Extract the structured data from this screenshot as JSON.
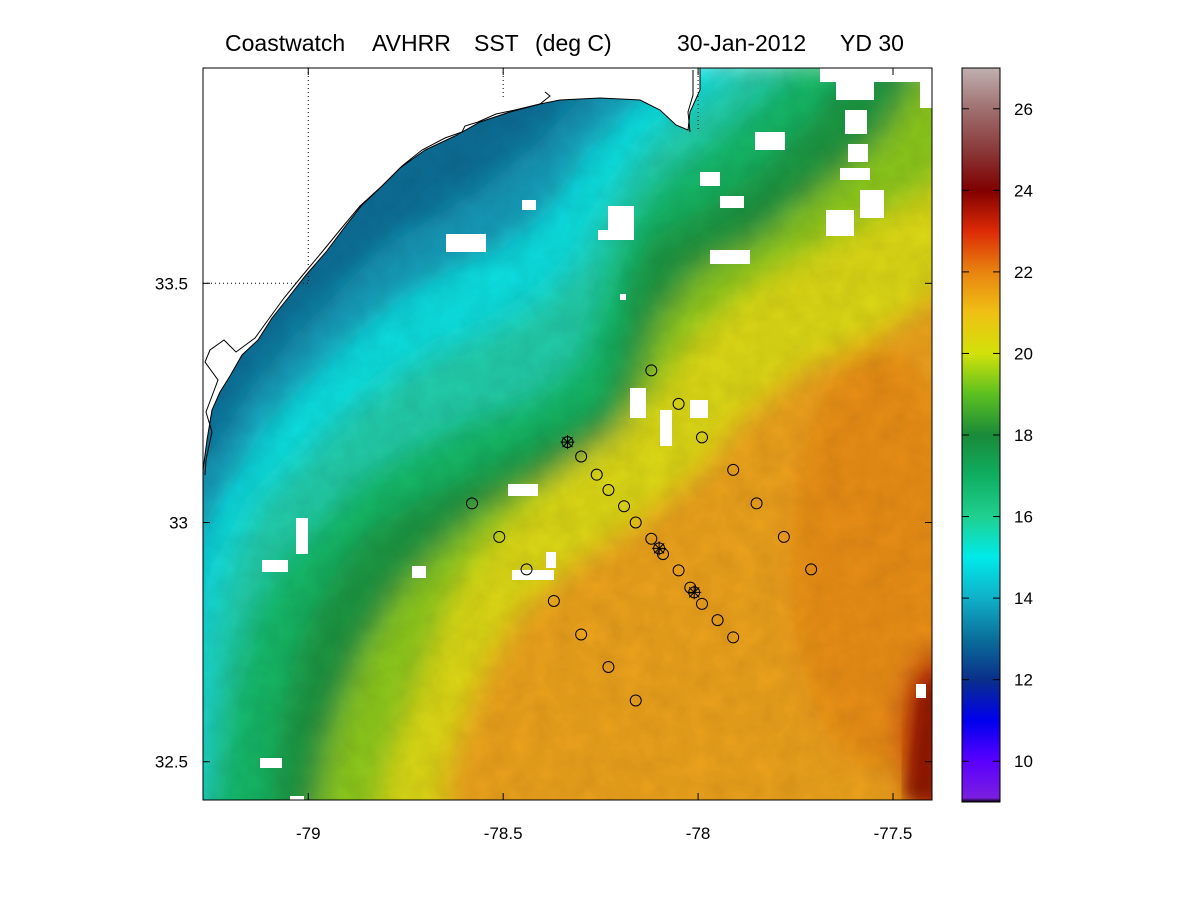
{
  "title": {
    "source": "Coastwatch",
    "sensor": "AVHRR",
    "variable": "SST",
    "units": "(deg C)",
    "date": "30-Jan-2012",
    "yearday": "YD 30"
  },
  "map": {
    "lon_range": [
      -79.27,
      -77.4
    ],
    "lat_range": [
      32.42,
      33.95
    ],
    "x_ticks": [
      {
        "value": -79,
        "label": "-79"
      },
      {
        "value": -78.5,
        "label": "-78.5"
      },
      {
        "value": -78,
        "label": "-78"
      },
      {
        "value": -77.5,
        "label": "-77.5"
      }
    ],
    "y_ticks": [
      {
        "value": 32.5,
        "label": "32.5"
      },
      {
        "value": 33,
        "label": "33"
      },
      {
        "value": 33.5,
        "label": "33.5"
      }
    ],
    "grid_lines": {
      "lon": [
        -79,
        -78.5,
        -78
      ],
      "lat": [
        33.5
      ],
      "style": "dotted"
    },
    "colors": {
      "land": "#ffffff",
      "coastline": "#000000"
    }
  },
  "colorbar": {
    "range": [
      9,
      27
    ],
    "ticks": [
      {
        "value": 10,
        "label": "10"
      },
      {
        "value": 12,
        "label": "12"
      },
      {
        "value": 14,
        "label": "14"
      },
      {
        "value": 16,
        "label": "16"
      },
      {
        "value": 18,
        "label": "18"
      },
      {
        "value": 20,
        "label": "20"
      },
      {
        "value": 22,
        "label": "22"
      },
      {
        "value": 24,
        "label": "24"
      },
      {
        "value": 26,
        "label": "26"
      }
    ],
    "stops": [
      {
        "value": 9,
        "color": "#000000"
      },
      {
        "value": 9.1,
        "color": "#7a1ee0"
      },
      {
        "value": 10,
        "color": "#5a00ff"
      },
      {
        "value": 11,
        "color": "#0000ee"
      },
      {
        "value": 12,
        "color": "#0a2f8a"
      },
      {
        "value": 13,
        "color": "#0a6f9a"
      },
      {
        "value": 14,
        "color": "#10b0c8"
      },
      {
        "value": 15,
        "color": "#00eaea"
      },
      {
        "value": 16,
        "color": "#20d090"
      },
      {
        "value": 17,
        "color": "#0fae60"
      },
      {
        "value": 18,
        "color": "#1a8a3a"
      },
      {
        "value": 19,
        "color": "#5cc020"
      },
      {
        "value": 20,
        "color": "#d2e10a"
      },
      {
        "value": 21,
        "color": "#f0c014"
      },
      {
        "value": 22,
        "color": "#e88410"
      },
      {
        "value": 23,
        "color": "#dd2a05"
      },
      {
        "value": 24,
        "color": "#800000"
      },
      {
        "value": 25,
        "color": "#8a3a3a"
      },
      {
        "value": 26,
        "color": "#a07070"
      },
      {
        "value": 27,
        "color": "#c0b0b0"
      }
    ]
  },
  "stations": [
    {
      "lon": -78.335,
      "lat": 33.168,
      "marker": "asterisk"
    },
    {
      "lon": -78.3,
      "lat": 33.138,
      "marker": "circle"
    },
    {
      "lon": -78.26,
      "lat": 33.1,
      "marker": "circle"
    },
    {
      "lon": -78.23,
      "lat": 33.068,
      "marker": "circle"
    },
    {
      "lon": -78.19,
      "lat": 33.034,
      "marker": "circle"
    },
    {
      "lon": -78.16,
      "lat": 33.0,
      "marker": "circle"
    },
    {
      "lon": -78.12,
      "lat": 32.966,
      "marker": "circle"
    },
    {
      "lon": -78.1,
      "lat": 32.946,
      "marker": "asterisk"
    },
    {
      "lon": -78.09,
      "lat": 32.934,
      "marker": "circle"
    },
    {
      "lon": -78.05,
      "lat": 32.9,
      "marker": "circle"
    },
    {
      "lon": -78.02,
      "lat": 32.864,
      "marker": "circle"
    },
    {
      "lon": -78.01,
      "lat": 32.854,
      "marker": "asterisk"
    },
    {
      "lon": -77.99,
      "lat": 32.83,
      "marker": "circle"
    },
    {
      "lon": -77.95,
      "lat": 32.796,
      "marker": "circle"
    },
    {
      "lon": -78.12,
      "lat": 33.318,
      "marker": "circle"
    },
    {
      "lon": -78.05,
      "lat": 33.248,
      "marker": "circle"
    },
    {
      "lon": -77.99,
      "lat": 33.178,
      "marker": "circle"
    },
    {
      "lon": -77.91,
      "lat": 33.11,
      "marker": "circle"
    },
    {
      "lon": -77.85,
      "lat": 33.04,
      "marker": "circle"
    },
    {
      "lon": -77.78,
      "lat": 32.97,
      "marker": "circle"
    },
    {
      "lon": -77.71,
      "lat": 32.902,
      "marker": "circle"
    },
    {
      "lon": -78.58,
      "lat": 33.04,
      "marker": "circle"
    },
    {
      "lon": -78.51,
      "lat": 32.97,
      "marker": "circle"
    },
    {
      "lon": -78.44,
      "lat": 32.902,
      "marker": "circle"
    },
    {
      "lon": -78.37,
      "lat": 32.836,
      "marker": "circle"
    },
    {
      "lon": -78.3,
      "lat": 32.766,
      "marker": "circle"
    },
    {
      "lon": -78.23,
      "lat": 32.698,
      "marker": "circle"
    },
    {
      "lon": -78.16,
      "lat": 32.628,
      "marker": "circle"
    },
    {
      "lon": -77.91,
      "lat": 32.76,
      "marker": "circle"
    }
  ]
}
